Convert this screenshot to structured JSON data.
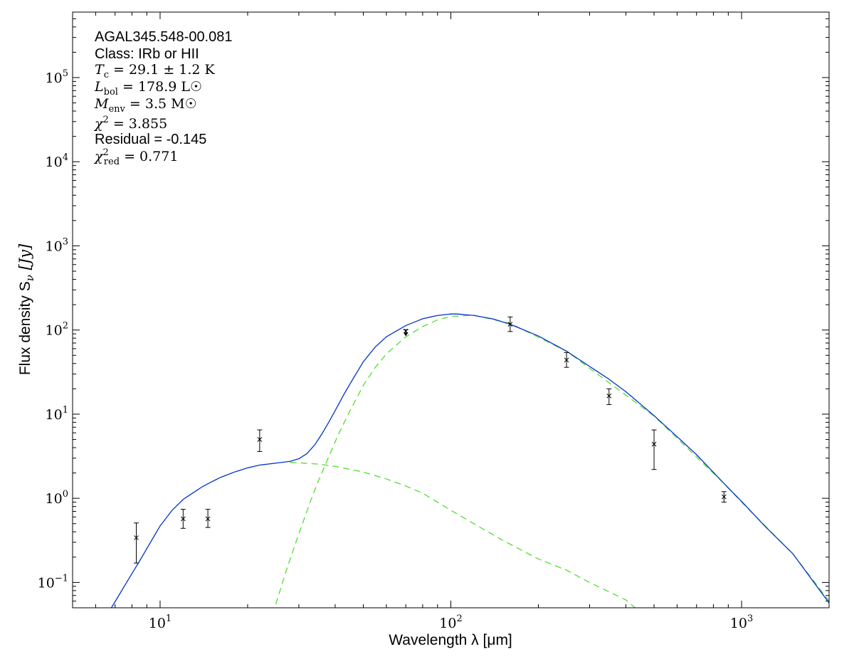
{
  "chart_data": {
    "type": "scatter",
    "x_scale": "log",
    "y_scale": "log",
    "xlim": [
      5,
      2000
    ],
    "ylim": [
      0.05,
      600000
    ],
    "xlabel": "Wavelength λ [μm]",
    "ylabel": "Flux density S",
    "ylabel_sub": "ν",
    "ylabel_unit": " [Jy]",
    "x_ticks": [
      {
        "value": 10,
        "base": "10",
        "exp": "1"
      },
      {
        "value": 100,
        "base": "10",
        "exp": "2"
      },
      {
        "value": 1000,
        "base": "10",
        "exp": "3"
      }
    ],
    "y_ticks": [
      {
        "value": 0.1,
        "base": "10",
        "exp": "−1"
      },
      {
        "value": 1,
        "base": "10",
        "exp": "0"
      },
      {
        "value": 10,
        "base": "10",
        "exp": "1"
      },
      {
        "value": 100,
        "base": "10",
        "exp": "2"
      },
      {
        "value": 1000,
        "base": "10",
        "exp": "3"
      },
      {
        "value": 10000,
        "base": "10",
        "exp": "4"
      },
      {
        "value": 100000,
        "base": "10",
        "exp": "5"
      }
    ],
    "annotation": {
      "source": "AGAL345.548-00.081",
      "class_label": "Class: IRb or HII",
      "tc": "29.1 ± 1.2 K",
      "lbol": "178.9 L☉",
      "menv": "3.5 M☉",
      "chi2": "3.855",
      "residual": "Residual = -0.145",
      "chi2_red": "0.771"
    },
    "points": [
      {
        "x": 8.28,
        "y": 0.34,
        "y_low": 0.17,
        "y_high": 0.51,
        "upper_limit": false
      },
      {
        "x": 12.0,
        "y": 0.57,
        "y_low": 0.44,
        "y_high": 0.74,
        "upper_limit": false
      },
      {
        "x": 14.6,
        "y": 0.57,
        "y_low": 0.45,
        "y_high": 0.74,
        "upper_limit": false
      },
      {
        "x": 22.0,
        "y": 5.0,
        "y_low": 3.6,
        "y_high": 6.5,
        "upper_limit": false
      },
      {
        "x": 70,
        "y": 97,
        "y_low": 86,
        "y_high": 101,
        "upper_limit": true
      },
      {
        "x": 160,
        "y": 117,
        "y_low": 96,
        "y_high": 143,
        "upper_limit": false
      },
      {
        "x": 250,
        "y": 44,
        "y_low": 36,
        "y_high": 54,
        "upper_limit": false
      },
      {
        "x": 350,
        "y": 16.5,
        "y_low": 13.0,
        "y_high": 20.0,
        "upper_limit": false
      },
      {
        "x": 500,
        "y": 4.4,
        "y_low": 2.2,
        "y_high": 6.5,
        "upper_limit": false
      },
      {
        "x": 870,
        "y": 1.04,
        "y_low": 0.9,
        "y_high": 1.2,
        "upper_limit": false
      }
    ],
    "series": [
      {
        "key": "total_fit",
        "color": "#0033cc",
        "dashed": false,
        "x": [
          6.8,
          7.5,
          8.5,
          10,
          11,
          12,
          14,
          16,
          18,
          20,
          22,
          25,
          28,
          30,
          32,
          34,
          36,
          38,
          40,
          43,
          46,
          50,
          55,
          60,
          70,
          80,
          90,
          100,
          105,
          120,
          140,
          160,
          200,
          250,
          300,
          350,
          400,
          500,
          600,
          700,
          870,
          1000,
          1200,
          1500,
          2000
        ],
        "y": [
          0.05,
          0.088,
          0.18,
          0.47,
          0.72,
          0.97,
          1.38,
          1.75,
          2.05,
          2.3,
          2.48,
          2.62,
          2.75,
          2.95,
          3.4,
          4.3,
          5.8,
          8.0,
          11.0,
          17.5,
          26,
          42,
          63,
          83,
          113,
          136,
          149,
          155,
          155,
          149,
          135,
          117,
          85,
          56,
          37,
          26,
          18.5,
          9.6,
          5.4,
          3.3,
          1.5,
          0.92,
          0.47,
          0.22,
          0.057
        ]
      },
      {
        "key": "cold_component",
        "color": "#55dd33",
        "dashed": true,
        "x": [
          25,
          27,
          29,
          31,
          33,
          35,
          38,
          41,
          45,
          50,
          55,
          60,
          70,
          80,
          90,
          100,
          120,
          160,
          250,
          500,
          870,
          1000,
          1500,
          2000
        ],
        "y": [
          0.055,
          0.13,
          0.27,
          0.52,
          0.95,
          1.6,
          3.1,
          5.7,
          11,
          22,
          36,
          52,
          83,
          110,
          132,
          145,
          150,
          120,
          56,
          9.5,
          1.5,
          0.9,
          0.22,
          0.06
        ]
      },
      {
        "key": "warm_component",
        "color": "#55dd33",
        "dashed": true,
        "x": [
          28,
          35,
          40,
          50,
          60,
          70,
          80,
          100,
          120,
          150,
          200,
          250,
          300,
          400,
          430
        ],
        "y": [
          2.68,
          2.55,
          2.4,
          2.05,
          1.7,
          1.4,
          1.15,
          0.72,
          0.5,
          0.32,
          0.19,
          0.14,
          0.1,
          0.062,
          0.05
        ]
      }
    ]
  }
}
